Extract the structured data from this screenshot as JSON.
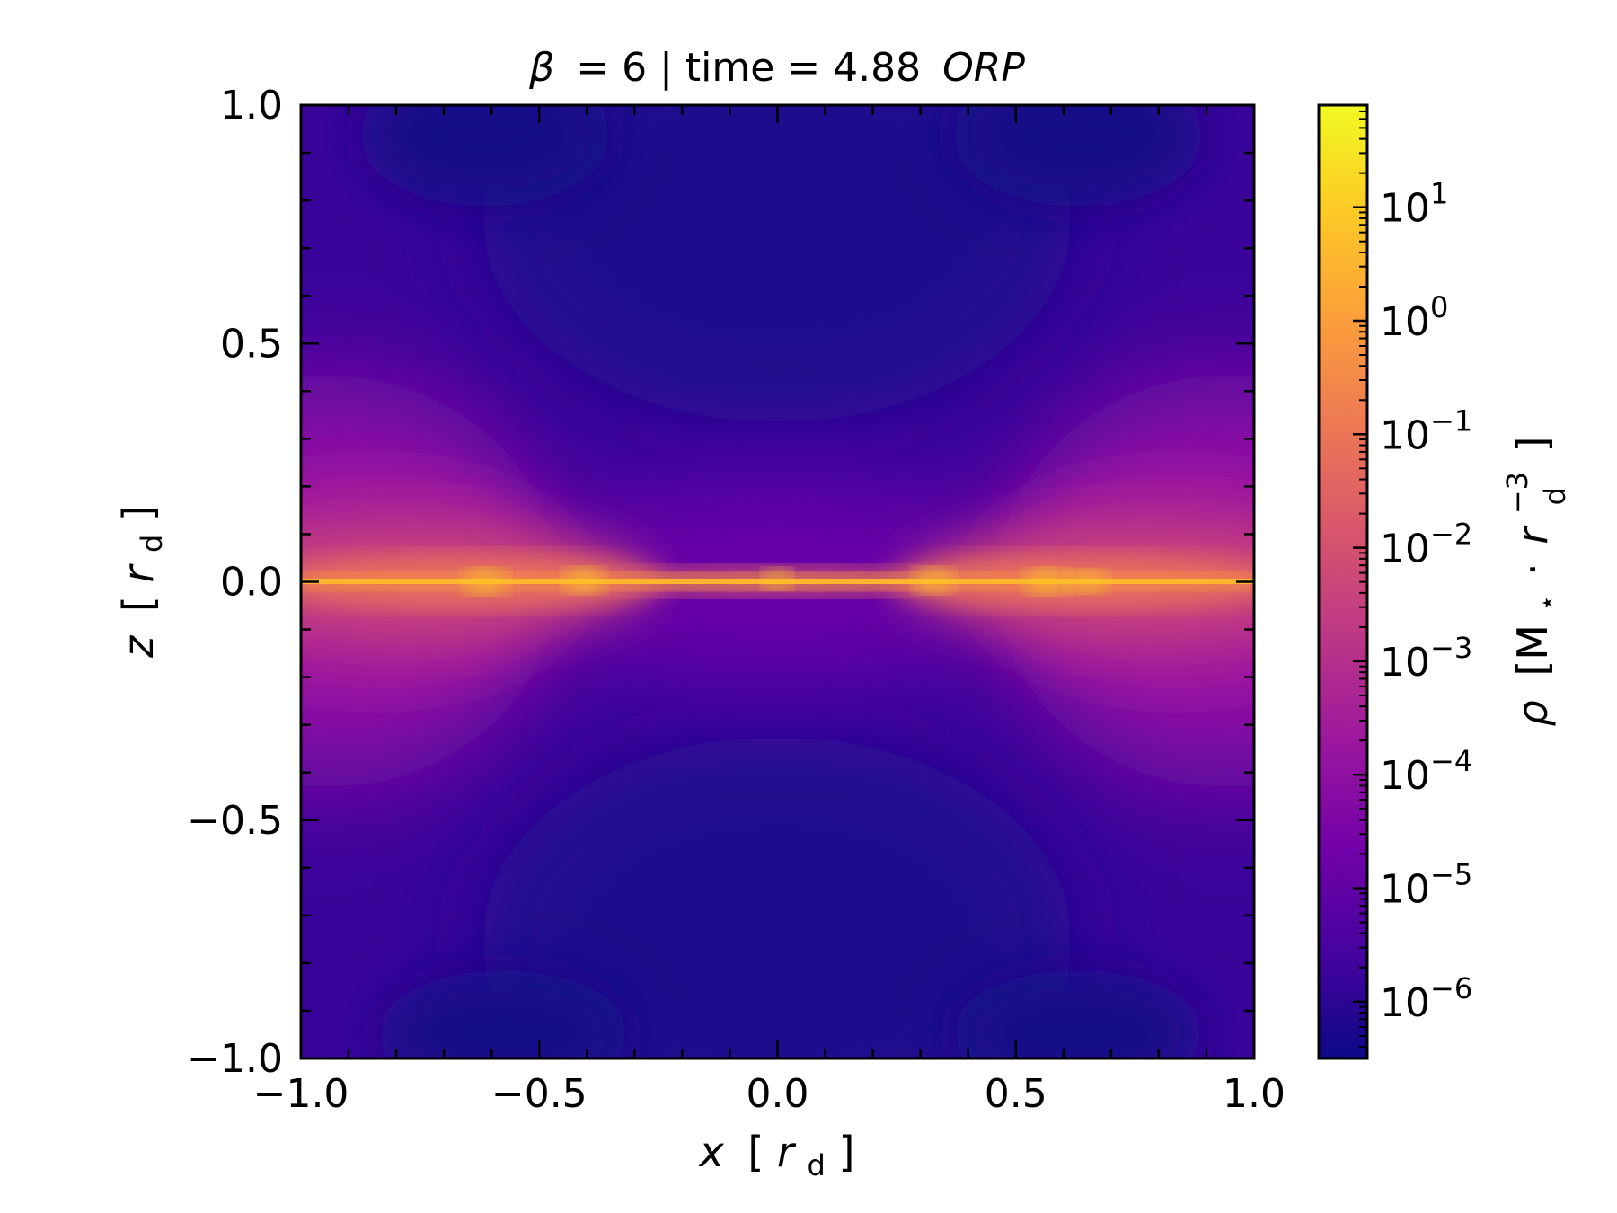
{
  "chart_data": {
    "type": "heatmap",
    "title": {
      "beta": "β",
      "beta_value": "= 6 | time = 4.88",
      "unit": "ORP"
    },
    "xlabel": {
      "var": "x",
      "open": "[",
      "sym": "r",
      "sub": "d",
      "close": "]"
    },
    "ylabel": {
      "var": "z",
      "open": "[",
      "sym": "r",
      "sub": "d",
      "close": "]"
    },
    "xlim": [
      -1.0,
      1.0
    ],
    "ylim": [
      -1.0,
      1.0
    ],
    "xticks": [
      {
        "value": -1.0,
        "label": "−1.0"
      },
      {
        "value": -0.5,
        "label": "−0.5"
      },
      {
        "value": 0.0,
        "label": "0.0"
      },
      {
        "value": 0.5,
        "label": "0.5"
      },
      {
        "value": 1.0,
        "label": "1.0"
      }
    ],
    "yticks": [
      {
        "value": -1.0,
        "label": "−1.0"
      },
      {
        "value": -0.5,
        "label": "−0.5"
      },
      {
        "value": 0.0,
        "label": "0.0"
      },
      {
        "value": 0.5,
        "label": "0.5"
      },
      {
        "value": 1.0,
        "label": "1.0"
      }
    ],
    "colorbar": {
      "scale": "log",
      "colormap": "plasma",
      "range_log10": [
        -6.5,
        1.9
      ],
      "label": {
        "var": "ρ",
        "open": "[M",
        "star": "⋆",
        "dot": "·",
        "sym": "r",
        "sub": "d",
        "sup": "−3",
        "close": "]"
      },
      "ticks": [
        {
          "exp": 1,
          "base": "10",
          "sup": "1"
        },
        {
          "exp": 0,
          "base": "10",
          "sup": "0"
        },
        {
          "exp": -1,
          "base": "10",
          "sup": "−1"
        },
        {
          "exp": -2,
          "base": "10",
          "sup": "−2"
        },
        {
          "exp": -3,
          "base": "10",
          "sup": "−3"
        },
        {
          "exp": -4,
          "base": "10",
          "sup": "−4"
        },
        {
          "exp": -5,
          "base": "10",
          "sup": "−5"
        },
        {
          "exp": -6,
          "base": "10",
          "sup": "−6"
        }
      ]
    },
    "colors": {
      "plasma": [
        "#0d0887",
        "#46039f",
        "#7201a8",
        "#9c179e",
        "#bd3786",
        "#d8576b",
        "#ed7953",
        "#fb9f3a",
        "#fdca26",
        "#f0f921"
      ]
    }
  }
}
